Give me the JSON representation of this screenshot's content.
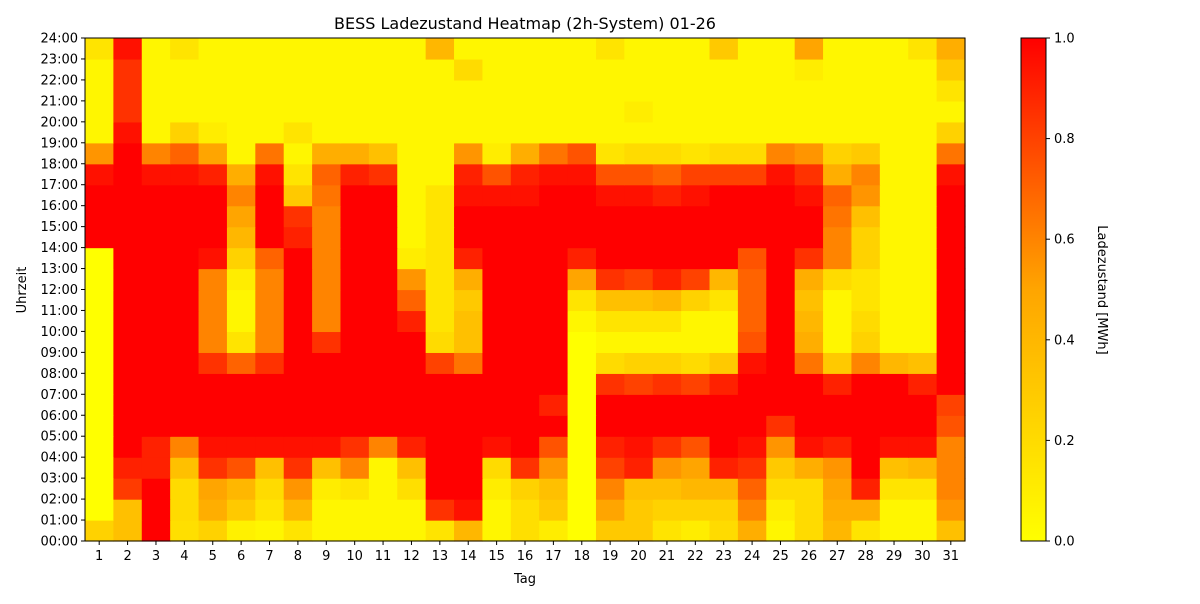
{
  "chart_data": {
    "type": "heatmap",
    "title": "BESS Ladezustand Heatmap (2h-System) 01-26",
    "xlabel": "Tag",
    "ylabel": "Uhrzeit",
    "colorbar_label": "Ladezustand [MWh]",
    "colorbar_ticks": [
      "0.0",
      "0.2",
      "0.4",
      "0.6",
      "0.8",
      "1.0"
    ],
    "vmin": 0.0,
    "vmax": 1.0,
    "colormap": [
      "#ffff00",
      "#ffa500",
      "#ff0000"
    ],
    "days": [
      "1",
      "2",
      "3",
      "4",
      "5",
      "6",
      "7",
      "8",
      "9",
      "10",
      "11",
      "12",
      "13",
      "14",
      "15",
      "16",
      "17",
      "18",
      "19",
      "20",
      "21",
      "22",
      "23",
      "24",
      "25",
      "26",
      "27",
      "28",
      "29",
      "30",
      "31"
    ],
    "hour_labels": [
      "00:00",
      "01:00",
      "02:00",
      "03:00",
      "04:00",
      "05:00",
      "06:00",
      "07:00",
      "08:00",
      "09:00",
      "10:00",
      "11:00",
      "12:00",
      "13:00",
      "14:00",
      "15:00",
      "16:00",
      "17:00",
      "18:00",
      "19:00",
      "20:00",
      "21:00",
      "22:00",
      "23:00",
      "24:00"
    ],
    "hours": [
      0,
      1,
      2,
      3,
      4,
      5,
      6,
      7,
      8,
      9,
      10,
      11,
      12,
      13,
      14,
      15,
      16,
      17,
      18,
      19,
      20,
      21,
      22,
      23
    ],
    "values": [
      [
        0.25,
        0.35,
        1.0,
        0.18,
        0.25,
        0.08,
        0.05,
        0.15,
        0.05,
        0.05,
        0.05,
        0.05,
        0.15,
        0.4,
        0.05,
        0.18,
        0.1,
        0.0,
        0.3,
        0.3,
        0.15,
        0.1,
        0.2,
        0.45,
        0.05,
        0.2,
        0.4,
        0.15,
        0.05,
        0.05,
        0.35
      ],
      [
        0.0,
        0.35,
        1.0,
        0.2,
        0.45,
        0.3,
        0.15,
        0.4,
        0.05,
        0.05,
        0.05,
        0.05,
        0.85,
        0.95,
        0.05,
        0.18,
        0.3,
        0.0,
        0.5,
        0.3,
        0.25,
        0.25,
        0.25,
        0.6,
        0.1,
        0.2,
        0.45,
        0.45,
        0.05,
        0.05,
        0.55
      ],
      [
        0.0,
        0.82,
        1.0,
        0.2,
        0.5,
        0.4,
        0.2,
        0.55,
        0.1,
        0.15,
        0.05,
        0.18,
        1.0,
        1.0,
        0.1,
        0.25,
        0.35,
        0.0,
        0.6,
        0.35,
        0.35,
        0.4,
        0.4,
        0.7,
        0.2,
        0.2,
        0.5,
        0.9,
        0.15,
        0.15,
        0.6
      ],
      [
        0.0,
        0.9,
        0.9,
        0.35,
        0.85,
        0.75,
        0.35,
        0.85,
        0.35,
        0.6,
        0.05,
        0.35,
        1.0,
        1.0,
        0.2,
        0.85,
        0.55,
        0.0,
        0.8,
        0.9,
        0.55,
        0.5,
        0.9,
        0.85,
        0.3,
        0.45,
        0.55,
        1.0,
        0.35,
        0.4,
        0.6
      ],
      [
        0.0,
        1.0,
        0.9,
        0.6,
        0.95,
        0.95,
        0.95,
        0.95,
        0.95,
        0.85,
        0.6,
        0.9,
        1.0,
        1.0,
        0.95,
        1.0,
        0.75,
        0.0,
        0.9,
        0.95,
        0.85,
        0.75,
        1.0,
        0.95,
        0.55,
        0.95,
        0.9,
        1.0,
        0.95,
        0.95,
        0.6
      ],
      [
        0.0,
        1.0,
        1.0,
        1.0,
        1.0,
        1.0,
        1.0,
        1.0,
        1.0,
        1.0,
        1.0,
        1.0,
        1.0,
        1.0,
        1.0,
        1.0,
        1.0,
        0.0,
        1.0,
        1.0,
        1.0,
        1.0,
        1.0,
        1.0,
        0.85,
        1.0,
        1.0,
        1.0,
        1.0,
        1.0,
        0.75
      ],
      [
        0.0,
        1.0,
        1.0,
        1.0,
        1.0,
        1.0,
        1.0,
        1.0,
        1.0,
        1.0,
        1.0,
        1.0,
        1.0,
        1.0,
        1.0,
        1.0,
        0.9,
        0.0,
        1.0,
        1.0,
        1.0,
        1.0,
        1.0,
        1.0,
        1.0,
        1.0,
        1.0,
        1.0,
        1.0,
        1.0,
        0.8
      ],
      [
        0.0,
        1.0,
        1.0,
        1.0,
        1.0,
        1.0,
        1.0,
        1.0,
        1.0,
        1.0,
        1.0,
        1.0,
        1.0,
        1.0,
        1.0,
        1.0,
        1.0,
        0.0,
        0.85,
        0.8,
        0.85,
        0.8,
        0.9,
        1.0,
        1.0,
        1.0,
        0.9,
        1.0,
        1.0,
        0.9,
        1.0
      ],
      [
        0.0,
        1.0,
        1.0,
        1.0,
        0.85,
        0.7,
        0.85,
        1.0,
        1.0,
        1.0,
        1.0,
        1.0,
        0.8,
        0.65,
        1.0,
        1.0,
        1.0,
        0.0,
        0.2,
        0.25,
        0.25,
        0.2,
        0.3,
        0.95,
        1.0,
        0.65,
        0.3,
        0.6,
        0.4,
        0.35,
        1.0
      ],
      [
        0.0,
        1.0,
        1.0,
        1.0,
        0.6,
        0.15,
        0.6,
        1.0,
        0.85,
        1.0,
        1.0,
        1.0,
        0.2,
        0.35,
        1.0,
        1.0,
        1.0,
        0.0,
        0.05,
        0.05,
        0.05,
        0.05,
        0.05,
        0.75,
        1.0,
        0.45,
        0.05,
        0.25,
        0.05,
        0.05,
        1.0
      ],
      [
        0.0,
        1.0,
        1.0,
        1.0,
        0.6,
        0.05,
        0.6,
        1.0,
        0.6,
        1.0,
        1.0,
        0.9,
        0.15,
        0.35,
        1.0,
        1.0,
        1.0,
        0.05,
        0.15,
        0.15,
        0.15,
        0.05,
        0.05,
        0.7,
        1.0,
        0.4,
        0.05,
        0.2,
        0.05,
        0.05,
        1.0
      ],
      [
        0.0,
        1.0,
        1.0,
        1.0,
        0.6,
        0.05,
        0.6,
        1.0,
        0.6,
        1.0,
        1.0,
        0.7,
        0.15,
        0.3,
        1.0,
        1.0,
        1.0,
        0.15,
        0.35,
        0.35,
        0.4,
        0.25,
        0.15,
        0.7,
        1.0,
        0.35,
        0.05,
        0.15,
        0.05,
        0.05,
        1.0
      ],
      [
        0.0,
        1.0,
        1.0,
        1.0,
        0.6,
        0.1,
        0.6,
        1.0,
        0.6,
        1.0,
        1.0,
        0.55,
        0.15,
        0.45,
        1.0,
        1.0,
        1.0,
        0.5,
        0.85,
        0.8,
        0.9,
        0.8,
        0.4,
        0.7,
        1.0,
        0.45,
        0.2,
        0.15,
        0.05,
        0.05,
        1.0
      ],
      [
        0.0,
        1.0,
        1.0,
        1.0,
        0.95,
        0.25,
        0.7,
        1.0,
        0.6,
        1.0,
        1.0,
        0.1,
        0.15,
        0.9,
        1.0,
        1.0,
        1.0,
        0.9,
        1.0,
        1.0,
        1.0,
        1.0,
        1.0,
        0.75,
        1.0,
        0.85,
        0.6,
        0.25,
        0.05,
        0.05,
        1.0
      ],
      [
        1.0,
        1.0,
        1.0,
        1.0,
        1.0,
        0.4,
        1.0,
        0.9,
        0.6,
        1.0,
        1.0,
        0.05,
        0.15,
        1.0,
        1.0,
        1.0,
        1.0,
        1.0,
        1.0,
        1.0,
        1.0,
        1.0,
        1.0,
        1.0,
        1.0,
        1.0,
        0.6,
        0.25,
        0.05,
        0.05,
        1.0
      ],
      [
        1.0,
        1.0,
        1.0,
        1.0,
        1.0,
        0.5,
        1.0,
        0.85,
        0.6,
        1.0,
        1.0,
        0.05,
        0.15,
        1.0,
        1.0,
        1.0,
        1.0,
        1.0,
        1.0,
        1.0,
        1.0,
        1.0,
        1.0,
        1.0,
        1.0,
        1.0,
        0.65,
        0.35,
        0.05,
        0.05,
        1.0
      ],
      [
        1.0,
        1.0,
        1.0,
        1.0,
        1.0,
        0.6,
        1.0,
        0.3,
        0.65,
        1.0,
        1.0,
        0.05,
        0.15,
        0.95,
        0.95,
        0.95,
        1.0,
        1.0,
        0.95,
        0.95,
        0.9,
        0.95,
        1.0,
        1.0,
        1.0,
        0.95,
        0.7,
        0.55,
        0.05,
        0.05,
        1.0
      ],
      [
        0.95,
        1.0,
        0.95,
        0.95,
        0.9,
        0.45,
        0.95,
        0.15,
        0.7,
        0.9,
        0.85,
        0.05,
        0.05,
        0.9,
        0.75,
        0.9,
        0.95,
        0.95,
        0.75,
        0.75,
        0.7,
        0.8,
        0.8,
        0.8,
        0.95,
        0.85,
        0.45,
        0.6,
        0.05,
        0.05,
        0.95
      ],
      [
        0.55,
        1.0,
        0.6,
        0.7,
        0.5,
        0.05,
        0.65,
        0.05,
        0.45,
        0.45,
        0.35,
        0.05,
        0.05,
        0.55,
        0.1,
        0.45,
        0.65,
        0.75,
        0.15,
        0.2,
        0.2,
        0.15,
        0.2,
        0.2,
        0.6,
        0.55,
        0.25,
        0.3,
        0.05,
        0.05,
        0.65
      ],
      [
        0.05,
        0.95,
        0.05,
        0.25,
        0.1,
        0.05,
        0.05,
        0.15,
        0.05,
        0.05,
        0.05,
        0.05,
        0.05,
        0.05,
        0.05,
        0.05,
        0.05,
        0.05,
        0.05,
        0.05,
        0.05,
        0.05,
        0.05,
        0.05,
        0.05,
        0.05,
        0.05,
        0.05,
        0.05,
        0.05,
        0.25
      ],
      [
        0.05,
        0.85,
        0.05,
        0.05,
        0.05,
        0.05,
        0.05,
        0.05,
        0.05,
        0.05,
        0.05,
        0.05,
        0.05,
        0.05,
        0.05,
        0.05,
        0.05,
        0.05,
        0.05,
        0.1,
        0.05,
        0.05,
        0.05,
        0.05,
        0.05,
        0.05,
        0.05,
        0.05,
        0.05,
        0.05,
        0.05
      ],
      [
        0.05,
        0.85,
        0.05,
        0.05,
        0.05,
        0.05,
        0.05,
        0.05,
        0.05,
        0.05,
        0.05,
        0.05,
        0.05,
        0.05,
        0.05,
        0.05,
        0.05,
        0.05,
        0.05,
        0.05,
        0.05,
        0.05,
        0.05,
        0.05,
        0.05,
        0.05,
        0.05,
        0.05,
        0.05,
        0.05,
        0.15
      ],
      [
        0.05,
        0.85,
        0.05,
        0.05,
        0.05,
        0.05,
        0.05,
        0.05,
        0.05,
        0.05,
        0.05,
        0.05,
        0.05,
        0.2,
        0.05,
        0.05,
        0.05,
        0.05,
        0.05,
        0.05,
        0.05,
        0.05,
        0.05,
        0.05,
        0.05,
        0.1,
        0.05,
        0.05,
        0.05,
        0.05,
        0.3
      ],
      [
        0.15,
        0.95,
        0.05,
        0.15,
        0.05,
        0.05,
        0.05,
        0.05,
        0.05,
        0.05,
        0.05,
        0.05,
        0.4,
        0.05,
        0.05,
        0.05,
        0.05,
        0.05,
        0.15,
        0.05,
        0.05,
        0.05,
        0.3,
        0.05,
        0.05,
        0.5,
        0.05,
        0.05,
        0.05,
        0.15,
        0.45
      ]
    ]
  }
}
